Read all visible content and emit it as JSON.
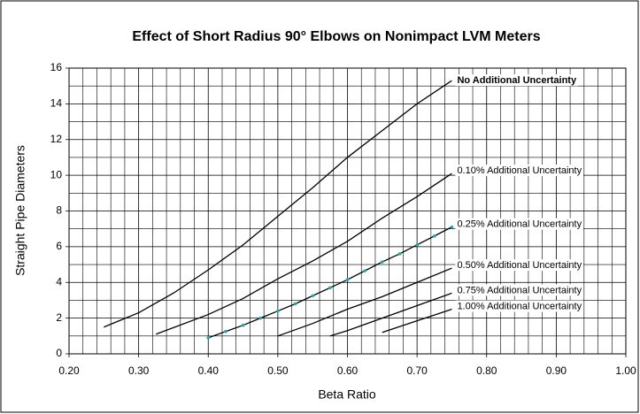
{
  "chart_data": {
    "type": "line",
    "title": "Effect of Short Radius 90° Elbows on Nonimpact LVM Meters",
    "xlabel": "Beta Ratio",
    "ylabel": "Straight Pipe Diameters",
    "xlim": [
      0.2,
      1.0
    ],
    "ylim": [
      0,
      16
    ],
    "xticks": [
      {
        "value": 0.2,
        "label": "0.20"
      },
      {
        "value": 0.3,
        "label": "0.30"
      },
      {
        "value": 0.4,
        "label": "0.40"
      },
      {
        "value": 0.5,
        "label": "0.50"
      },
      {
        "value": 0.6,
        "label": "0.60"
      },
      {
        "value": 0.7,
        "label": "0.70"
      },
      {
        "value": 0.8,
        "label": "0.80"
      },
      {
        "value": 0.9,
        "label": "0.90"
      },
      {
        "value": 1.0,
        "label": "1.00"
      }
    ],
    "yticks": [
      0,
      2,
      4,
      6,
      8,
      10,
      12,
      14,
      16
    ],
    "xminorticks": [
      0.22,
      0.24,
      0.26,
      0.28,
      0.32,
      0.34,
      0.36,
      0.38,
      0.42,
      0.44,
      0.46,
      0.48,
      0.52,
      0.54,
      0.56,
      0.58,
      0.62,
      0.64,
      0.66,
      0.68,
      0.72,
      0.74,
      0.76,
      0.78,
      0.82,
      0.84,
      0.86,
      0.88,
      0.92,
      0.94,
      0.96,
      0.98
    ],
    "yminorticks": [
      1,
      3,
      5,
      7,
      9,
      11,
      13,
      15
    ],
    "grid": true,
    "series": [
      {
        "name": "No Additional Uncertainty",
        "color": "#000000",
        "bold": true,
        "x": [
          0.25,
          0.3,
          0.35,
          0.4,
          0.45,
          0.5,
          0.55,
          0.6,
          0.65,
          0.7,
          0.75
        ],
        "values": [
          1.5,
          2.3,
          3.4,
          4.7,
          6.1,
          7.7,
          9.3,
          11.0,
          12.5,
          14.0,
          15.3
        ]
      },
      {
        "name": "0.10% Additional Uncertainty",
        "color": "#000000",
        "x": [
          0.325,
          0.4,
          0.45,
          0.5,
          0.55,
          0.6,
          0.65,
          0.7,
          0.75
        ],
        "values": [
          1.1,
          2.2,
          3.1,
          4.2,
          5.2,
          6.3,
          7.6,
          8.8,
          10.1
        ]
      },
      {
        "name": "0.25% Additional Uncertainty",
        "color": "#000000",
        "marker_color": "#22aaaa",
        "x": [
          0.4,
          0.425,
          0.45,
          0.475,
          0.5,
          0.525,
          0.55,
          0.575,
          0.6,
          0.625,
          0.65,
          0.675,
          0.7,
          0.725,
          0.75
        ],
        "values": [
          0.9,
          1.25,
          1.6,
          2.0,
          2.4,
          2.8,
          3.25,
          3.7,
          4.15,
          4.65,
          5.15,
          5.6,
          6.1,
          6.6,
          7.1
        ]
      },
      {
        "name": "0.50% Additional Uncertainty",
        "color": "#000000",
        "x": [
          0.5,
          0.55,
          0.6,
          0.65,
          0.7,
          0.75
        ],
        "values": [
          1.0,
          1.7,
          2.5,
          3.2,
          4.0,
          4.8
        ]
      },
      {
        "name": "0.75% Additional Uncertainty",
        "color": "#000000",
        "x": [
          0.575,
          0.6,
          0.65,
          0.7,
          0.75
        ],
        "values": [
          1.0,
          1.3,
          2.0,
          2.7,
          3.4
        ]
      },
      {
        "name": "1.00% Additional Uncertainty",
        "color": "#000000",
        "x": [
          0.65,
          0.7,
          0.75
        ],
        "values": [
          1.2,
          1.85,
          2.5
        ]
      }
    ]
  }
}
